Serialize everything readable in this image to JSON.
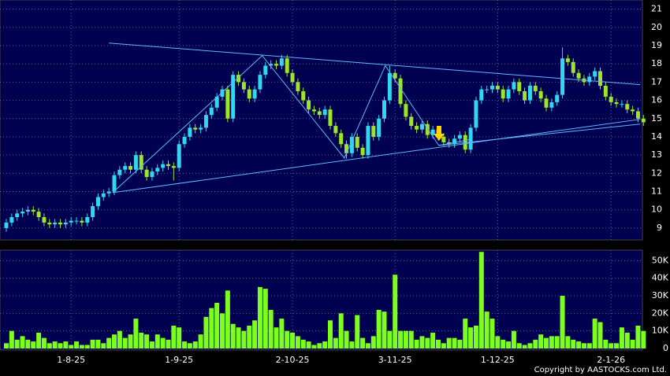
{
  "chart_data": {
    "type": "candlestick",
    "categories": [
      null,
      null,
      null,
      null,
      null,
      null,
      null,
      null,
      null,
      null,
      null,
      null,
      "1-8-25",
      null,
      null,
      null,
      null,
      null,
      null,
      null,
      null,
      null,
      null,
      null,
      null,
      null,
      null,
      null,
      null,
      null,
      null,
      null,
      "1-9-25",
      null,
      null,
      null,
      null,
      null,
      null,
      null,
      null,
      null,
      null,
      null,
      null,
      null,
      null,
      null,
      null,
      null,
      null,
      null,
      null,
      "2-10-25",
      null,
      null,
      null,
      null,
      null,
      null,
      null,
      null,
      null,
      null,
      null,
      null,
      null,
      null,
      null,
      null,
      null,
      null,
      "3-11-25",
      null,
      null,
      null,
      null,
      null,
      null,
      null,
      null,
      null,
      null,
      null,
      null,
      null,
      null,
      null,
      null,
      null,
      null,
      "1-12-25",
      null,
      null,
      null,
      null,
      null,
      null,
      null,
      null,
      null,
      null,
      null,
      null,
      null,
      null,
      null,
      null,
      null,
      null,
      null,
      null,
      "2-1-26",
      null,
      null,
      null,
      null,
      null,
      null
    ],
    "open": [
      9.0,
      9.3,
      9.6,
      9.8,
      9.9,
      10.0,
      9.9,
      9.6,
      9.3,
      9.2,
      9.3,
      9.2,
      9.3,
      9.4,
      9.4,
      9.3,
      9.6,
      10.2,
      10.7,
      10.9,
      11.0,
      11.9,
      12.2,
      12.4,
      12.2,
      13.0,
      12.2,
      11.8,
      12.1,
      12.3,
      12.5,
      12.4,
      12.3,
      13.6,
      14.0,
      14.5,
      14.4,
      14.5,
      15.2,
      15.6,
      16.2,
      16.6,
      15.0,
      17.4,
      17.0,
      16.6,
      16.1,
      16.6,
      17.4,
      17.9,
      18.0,
      17.9,
      18.3,
      17.5,
      17.0,
      16.5,
      16.0,
      15.5,
      15.4,
      15.2,
      15.5,
      14.6,
      14.2,
      13.6,
      13.1,
      14.0,
      13.4,
      13.0,
      14.6,
      14.0,
      15.0,
      16.0,
      17.5,
      17.2,
      15.8,
      15.1,
      14.6,
      14.4,
      14.7,
      14.1,
      14.4,
      14.0,
      13.7,
      13.6,
      13.9,
      14.1,
      13.3,
      14.5,
      16.0,
      16.6,
      16.6,
      16.8,
      16.6,
      16.1,
      16.6,
      17.0,
      16.5,
      16.0,
      16.8,
      16.5,
      16.1,
      15.6,
      15.9,
      16.3,
      18.3,
      18.1,
      17.5,
      17.2,
      17.0,
      17.3,
      17.6,
      16.8,
      16.2,
      15.9,
      15.8,
      15.8,
      15.5,
      15.4,
      15.0
    ],
    "high": [
      9.5,
      9.8,
      10.0,
      10.1,
      10.2,
      10.2,
      10.1,
      9.8,
      9.5,
      9.5,
      9.5,
      9.5,
      9.6,
      9.6,
      9.6,
      9.8,
      10.4,
      10.9,
      11.1,
      11.2,
      12.1,
      12.4,
      12.6,
      12.6,
      13.2,
      13.2,
      12.4,
      12.3,
      12.5,
      12.7,
      12.7,
      12.6,
      13.8,
      14.2,
      14.7,
      14.7,
      14.7,
      15.4,
      15.8,
      16.4,
      16.8,
      16.8,
      17.6,
      17.6,
      17.2,
      16.8,
      16.8,
      17.6,
      18.1,
      18.2,
      18.2,
      18.5,
      18.5,
      17.7,
      17.2,
      16.7,
      16.2,
      15.7,
      15.6,
      15.7,
      15.7,
      14.8,
      14.4,
      13.8,
      14.2,
      14.2,
      13.6,
      14.8,
      14.8,
      15.2,
      16.2,
      17.9,
      17.7,
      17.4,
      16.0,
      15.3,
      14.8,
      14.9,
      14.9,
      14.6,
      14.6,
      14.2,
      13.9,
      14.1,
      14.3,
      14.3,
      14.7,
      16.2,
      16.8,
      16.8,
      17.0,
      17.0,
      16.8,
      16.8,
      17.2,
      17.2,
      16.7,
      17.0,
      17.0,
      16.7,
      16.3,
      16.1,
      16.5,
      18.9,
      18.5,
      18.3,
      17.7,
      17.4,
      17.5,
      17.8,
      17.8,
      17.0,
      16.4,
      16.1,
      16.0,
      16.0,
      15.7,
      15.6,
      15.2
    ],
    "low": [
      8.8,
      9.1,
      9.4,
      9.6,
      9.7,
      9.7,
      9.4,
      9.1,
      9.0,
      9.0,
      9.0,
      9.0,
      9.1,
      9.2,
      9.1,
      9.1,
      9.4,
      10.0,
      10.5,
      10.7,
      10.8,
      11.7,
      12.0,
      12.0,
      12.0,
      12.0,
      11.6,
      11.6,
      11.9,
      12.1,
      12.2,
      11.6,
      12.1,
      13.4,
      13.8,
      14.2,
      14.2,
      14.3,
      15.0,
      15.4,
      16.0,
      14.8,
      14.8,
      16.8,
      16.4,
      15.9,
      15.9,
      16.4,
      17.2,
      17.7,
      17.7,
      17.7,
      17.3,
      16.8,
      16.3,
      15.8,
      15.3,
      15.2,
      15.0,
      15.0,
      14.4,
      14.0,
      13.4,
      12.8,
      12.9,
      13.2,
      12.8,
      12.8,
      13.8,
      13.8,
      14.8,
      15.8,
      17.0,
      15.6,
      14.9,
      14.4,
      14.2,
      14.2,
      13.9,
      13.9,
      13.8,
      13.5,
      13.4,
      13.4,
      13.7,
      13.1,
      13.1,
      14.3,
      15.8,
      16.4,
      16.4,
      16.4,
      15.9,
      15.9,
      16.4,
      16.3,
      15.8,
      15.8,
      16.3,
      15.9,
      15.4,
      15.4,
      15.7,
      16.1,
      17.9,
      17.3,
      17.0,
      16.8,
      16.8,
      17.1,
      16.6,
      16.0,
      15.7,
      15.6,
      15.6,
      15.3,
      15.2,
      14.8,
      14.6
    ],
    "close": [
      9.3,
      9.6,
      9.8,
      9.9,
      10.0,
      9.9,
      9.6,
      9.3,
      9.2,
      9.3,
      9.2,
      9.3,
      9.4,
      9.4,
      9.3,
      9.6,
      10.2,
      10.7,
      10.9,
      11.0,
      11.9,
      12.2,
      12.4,
      12.2,
      13.0,
      12.2,
      11.8,
      12.1,
      12.3,
      12.5,
      12.4,
      12.3,
      13.6,
      14.0,
      14.5,
      14.4,
      14.5,
      15.2,
      15.6,
      16.2,
      16.6,
      15.0,
      17.4,
      17.0,
      16.6,
      16.1,
      16.6,
      17.4,
      17.9,
      18.0,
      17.9,
      18.3,
      17.5,
      17.0,
      16.5,
      16.0,
      15.5,
      15.4,
      15.2,
      15.5,
      14.6,
      14.2,
      13.6,
      13.1,
      14.0,
      13.4,
      13.0,
      14.6,
      14.0,
      15.0,
      16.0,
      17.5,
      17.2,
      15.8,
      15.1,
      14.6,
      14.4,
      14.7,
      14.1,
      14.4,
      14.0,
      13.7,
      13.6,
      13.9,
      14.1,
      13.3,
      14.5,
      16.0,
      16.6,
      16.6,
      16.8,
      16.6,
      16.1,
      16.6,
      17.0,
      16.5,
      16.0,
      16.8,
      16.5,
      16.1,
      15.6,
      15.9,
      16.3,
      18.3,
      18.1,
      17.5,
      17.2,
      17.0,
      17.3,
      17.6,
      16.8,
      16.2,
      15.9,
      15.8,
      15.8,
      15.5,
      15.4,
      15.0,
      14.8
    ],
    "up_color": "#2fd8f0",
    "down_color": "#9be52a",
    "ylim": [
      8.35,
      21.5
    ],
    "yticks": [
      9,
      10,
      11,
      12,
      13,
      14,
      15,
      16,
      17,
      18,
      19,
      20,
      21
    ],
    "grid": true,
    "trendlines": [
      {
        "color": "#5fb8ff",
        "x": [
          19,
          117.4
        ],
        "y": [
          19.14,
          16.86
        ]
      },
      {
        "color": "#5fb8ff",
        "x": [
          19.7,
          117.4
        ],
        "y": [
          10.94,
          14.96
        ]
      },
      {
        "color": "#5fb8ff",
        "x": [
          80.1,
          117.4
        ],
        "y": [
          13.53,
          14.7
        ]
      },
      {
        "color": "#5fb8ff",
        "x": [
          19.7,
          47.4,
          62.6,
          70.2,
          80.1,
          85.7
        ],
        "y": [
          10.94,
          18.45,
          12.84,
          17.9,
          13.53,
          13.84
        ]
      }
    ],
    "volume": {
      "color": "#7dff1e",
      "values": [
        3000,
        10000,
        5000,
        7000,
        5000,
        4000,
        9000,
        6000,
        3000,
        4000,
        3000,
        4000,
        2000,
        4000,
        2000,
        2000,
        5000,
        5000,
        3000,
        6000,
        8000,
        10000,
        6000,
        8000,
        17000,
        9000,
        8000,
        4000,
        8000,
        6000,
        5000,
        13000,
        12000,
        4000,
        3000,
        4000,
        8000,
        18000,
        23000,
        26000,
        20000,
        33000,
        14000,
        12000,
        10000,
        13000,
        16000,
        35000,
        34000,
        22000,
        12000,
        17000,
        10000,
        9000,
        7000,
        5000,
        4000,
        2000,
        3000,
        4000,
        16000,
        6000,
        20000,
        10000,
        4000,
        19000,
        6000,
        3000,
        7000,
        22000,
        21000,
        10000,
        42000,
        10000,
        10000,
        10000,
        5000,
        7000,
        6000,
        9000,
        5000,
        3000,
        6000,
        6000,
        5000,
        17000,
        12000,
        13000,
        55000,
        21000,
        17000,
        7000,
        5000,
        4000,
        10000,
        3000,
        2000,
        3000,
        5000,
        8000,
        6000,
        7000,
        7000,
        30000,
        7000,
        5000,
        4000,
        3000,
        3000,
        17000,
        15000,
        5000,
        3000,
        3000,
        12000,
        9000,
        5000,
        13000,
        10000
      ],
      "ylim": [
        0,
        56000
      ],
      "yticks": [
        0,
        {
          "value": 10000,
          "label": "10K"
        },
        {
          "value": 20000,
          "label": "20K"
        },
        {
          "value": 30000,
          "label": "30K"
        },
        {
          "value": 40000,
          "label": "40K"
        },
        {
          "value": 50000,
          "label": "50K"
        }
      ]
    },
    "copyright": "Copyright by AASTOCKS.com Ltd."
  }
}
